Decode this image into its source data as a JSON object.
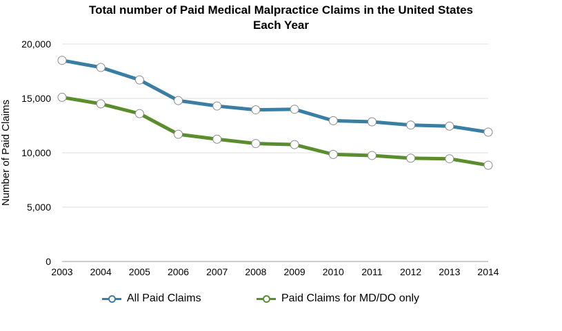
{
  "chart_data": {
    "type": "line",
    "title_lines": [
      "Total number of Paid Medical Malpractice Claims in the United States",
      "Each Year"
    ],
    "xlabel": "",
    "ylabel": "Number of Paid Claims",
    "categories": [
      "2003",
      "2004",
      "2005",
      "2006",
      "2007",
      "2008",
      "2009",
      "2010",
      "2011",
      "2012",
      "2013",
      "2014"
    ],
    "y_ticks": [
      {
        "value": 0,
        "label": "0"
      },
      {
        "value": 5000,
        "label": "5,000"
      },
      {
        "value": 10000,
        "label": "10,000"
      },
      {
        "value": 15000,
        "label": "15,000"
      },
      {
        "value": 20000,
        "label": "20,000"
      }
    ],
    "ylim": [
      0,
      20000
    ],
    "grid": true,
    "legend_position": "bottom",
    "series": [
      {
        "name": "All Paid Claims",
        "color": "#3a7fa3",
        "values": [
          18500,
          17850,
          16700,
          14800,
          14300,
          13950,
          14000,
          12950,
          12850,
          12550,
          12450,
          11900
        ]
      },
      {
        "name": "Paid Claims for MD/DO only",
        "color": "#5a8e2c",
        "values": [
          15100,
          14500,
          13600,
          11700,
          11250,
          10850,
          10750,
          9850,
          9750,
          9500,
          9450,
          8850
        ]
      }
    ]
  }
}
